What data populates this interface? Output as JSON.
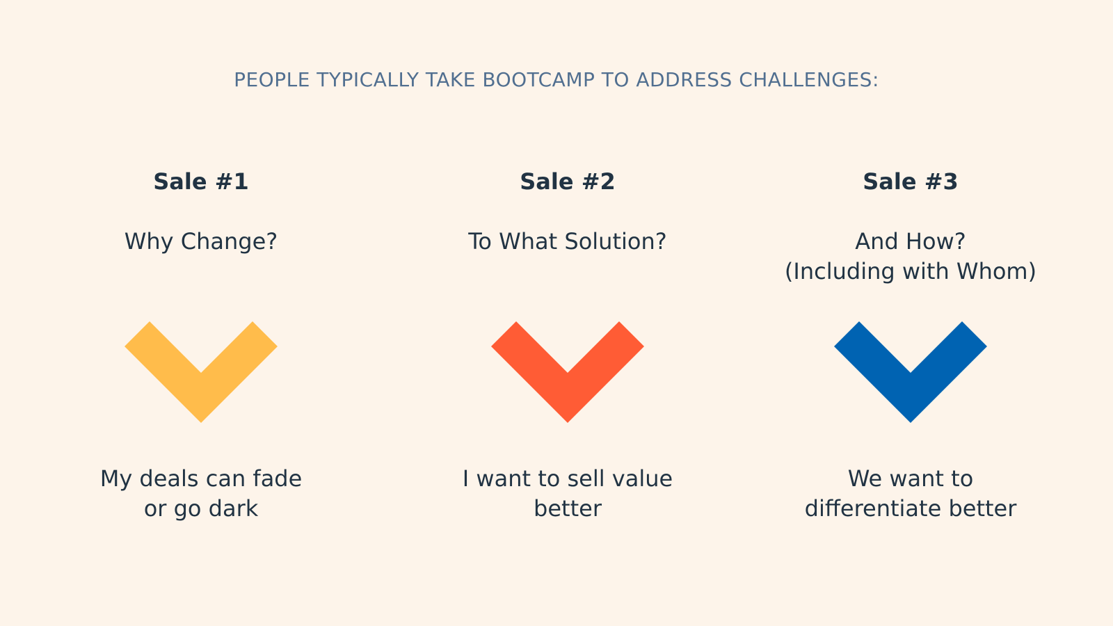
{
  "heading": "PEOPLE TYPICALLY TAKE BOOTCAMP TO ADDRESS CHALLENGES:",
  "columns": [
    {
      "title": "Sale #1",
      "question": [
        "Why Change?"
      ],
      "answer": [
        "My deals can fade",
        "or go dark"
      ],
      "chevron_icon": "chevron-down-icon",
      "chevron_color": "#FFBC4B"
    },
    {
      "title": "Sale #2",
      "question": [
        "To What Solution?"
      ],
      "answer": [
        "I want to sell value",
        "better"
      ],
      "chevron_icon": "chevron-down-icon",
      "chevron_color": "#FF5C35"
    },
    {
      "title": "Sale #3",
      "question": [
        "And How?",
        "(Including with Whom)"
      ],
      "answer": [
        "We want to",
        "differentiate better"
      ],
      "chevron_icon": "chevron-down-icon",
      "chevron_color": "#0063B2"
    }
  ],
  "colors": {
    "background": "#FDF4EA",
    "heading": "#516F90",
    "text": "#213343"
  }
}
